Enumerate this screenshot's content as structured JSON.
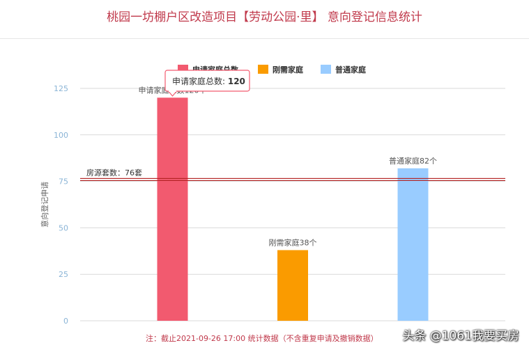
{
  "page": {
    "title": "桃园一坊棚户区改造项目【劳动公园·里】 意向登记信息统计",
    "note": "注：截止2021-09-26 17:00 统计数据（不含重复申请及撤销数据）",
    "watermark": "头条 @1061我要买房"
  },
  "tooltip": {
    "label": "申请家庭总数: ",
    "value": "120"
  },
  "colors": {
    "axis_tick": "#8ab4d6",
    "reference_line": "#b22222",
    "grid": "#d9d9d9"
  },
  "chart_data": {
    "type": "bar",
    "ylabel": "意向登记申请",
    "ylim": [
      0,
      125
    ],
    "yticks": [
      "0",
      "25",
      "50",
      "75",
      "100",
      "125"
    ],
    "grid": true,
    "legend_position": "top",
    "series": [
      {
        "name": "申请家庭总数",
        "value": 120,
        "color": "#f25a6f",
        "data_label": "申请家庭总数120个"
      },
      {
        "name": "刚需家庭",
        "value": 38,
        "color": "#fa9b00",
        "data_label": "刚需家庭38个"
      },
      {
        "name": "普通家庭",
        "value": 82,
        "color": "#99ccff",
        "data_label": "普通家庭82个"
      }
    ],
    "reference_line": {
      "label": "房源套数：76套",
      "value": 76
    }
  }
}
